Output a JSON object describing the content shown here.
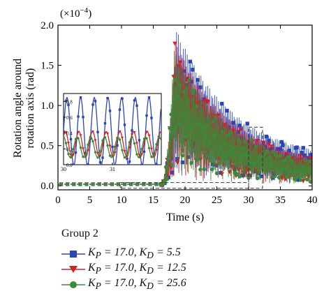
{
  "chart_data": {
    "type": "line",
    "multiplier_label": "(×10",
    "multiplier_exp": "−4",
    "multiplier_close": ")",
    "xlabel": "Time (s)",
    "ylabel_line1": "Rotation angle around",
    "ylabel_line2": "rotation axis (rad)",
    "xlim": [
      0,
      40
    ],
    "ylim": [
      -0.05,
      2.0
    ],
    "x_ticks": [
      "0",
      "5",
      "10",
      "15",
      "20",
      "25",
      "30",
      "35",
      "40"
    ],
    "y_ticks": [
      "0.0",
      "0.5",
      "1.0",
      "1.5",
      "2.0"
    ],
    "inset": {
      "x_ticks": [
        "30",
        "31"
      ],
      "y_ticks": [
        "0.8",
        "0.6",
        "0.4",
        "0.2",
        "0.0"
      ],
      "xlim": [
        30,
        32
      ],
      "ylim": [
        0,
        0.9
      ]
    },
    "legend_title": "Group 2",
    "series": [
      {
        "name": "K_P = 17.0, K_D = 5.5",
        "label_p": "17.0",
        "label_d": "5.5",
        "color": "#2b45b8",
        "marker": "square",
        "envelope": {
          "onset": 16.2,
          "peak_t": 18.6,
          "peak": 1.95,
          "end": 0.3
        },
        "inset_amp": 0.43,
        "inset_center": 0.42,
        "inset_freq": 6.5
      },
      {
        "name": "K_P = 17.0, K_D = 12.5",
        "label_p": "17.0",
        "label_d": "12.5",
        "color": "#d42020",
        "marker": "triangle-down",
        "envelope": {
          "onset": 16.2,
          "peak_t": 18.4,
          "peak": 1.8,
          "end": 0.22
        },
        "inset_amp": 0.16,
        "inset_center": 0.26,
        "inset_freq": 6.5
      },
      {
        "name": "K_P = 17.0, K_D = 25.6",
        "label_p": "17.0",
        "label_d": "25.6",
        "color": "#3a8a3a",
        "marker": "circle",
        "envelope": {
          "onset": 16.2,
          "peak_t": 18.2,
          "peak": 1.7,
          "end": 0.18
        },
        "inset_amp": 0.13,
        "inset_center": 0.22,
        "inset_freq": 6.5
      }
    ]
  }
}
